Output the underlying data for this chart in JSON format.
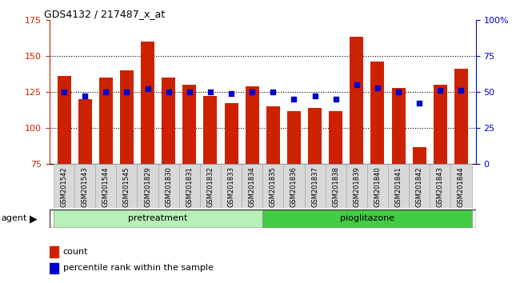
{
  "title": "GDS4132 / 217487_x_at",
  "samples": [
    "GSM201542",
    "GSM201543",
    "GSM201544",
    "GSM201545",
    "GSM201829",
    "GSM201830",
    "GSM201831",
    "GSM201832",
    "GSM201833",
    "GSM201834",
    "GSM201835",
    "GSM201836",
    "GSM201837",
    "GSM201838",
    "GSM201839",
    "GSM201840",
    "GSM201841",
    "GSM201842",
    "GSM201843",
    "GSM201844"
  ],
  "counts": [
    136,
    120,
    135,
    140,
    160,
    135,
    130,
    122,
    117,
    129,
    115,
    112,
    114,
    112,
    163,
    146,
    128,
    87,
    130,
    141
  ],
  "percentiles": [
    50,
    47,
    50,
    50,
    52,
    50,
    50,
    50,
    49,
    50,
    50,
    45,
    47,
    45,
    55,
    53,
    50,
    42,
    51,
    51
  ],
  "pretreatment_count": 10,
  "bar_color": "#cc2200",
  "dot_color": "#0000cc",
  "pre_color": "#b8f0b8",
  "pio_color": "#44cc44",
  "ylim_left": [
    75,
    175
  ],
  "ylim_right": [
    0,
    100
  ],
  "yticks_left": [
    75,
    100,
    125,
    150,
    175
  ],
  "yticks_right": [
    0,
    25,
    50,
    75,
    100
  ],
  "grid_values": [
    100,
    125,
    150
  ],
  "legend_count": "count",
  "legend_percentile": "percentile rank within the sample"
}
